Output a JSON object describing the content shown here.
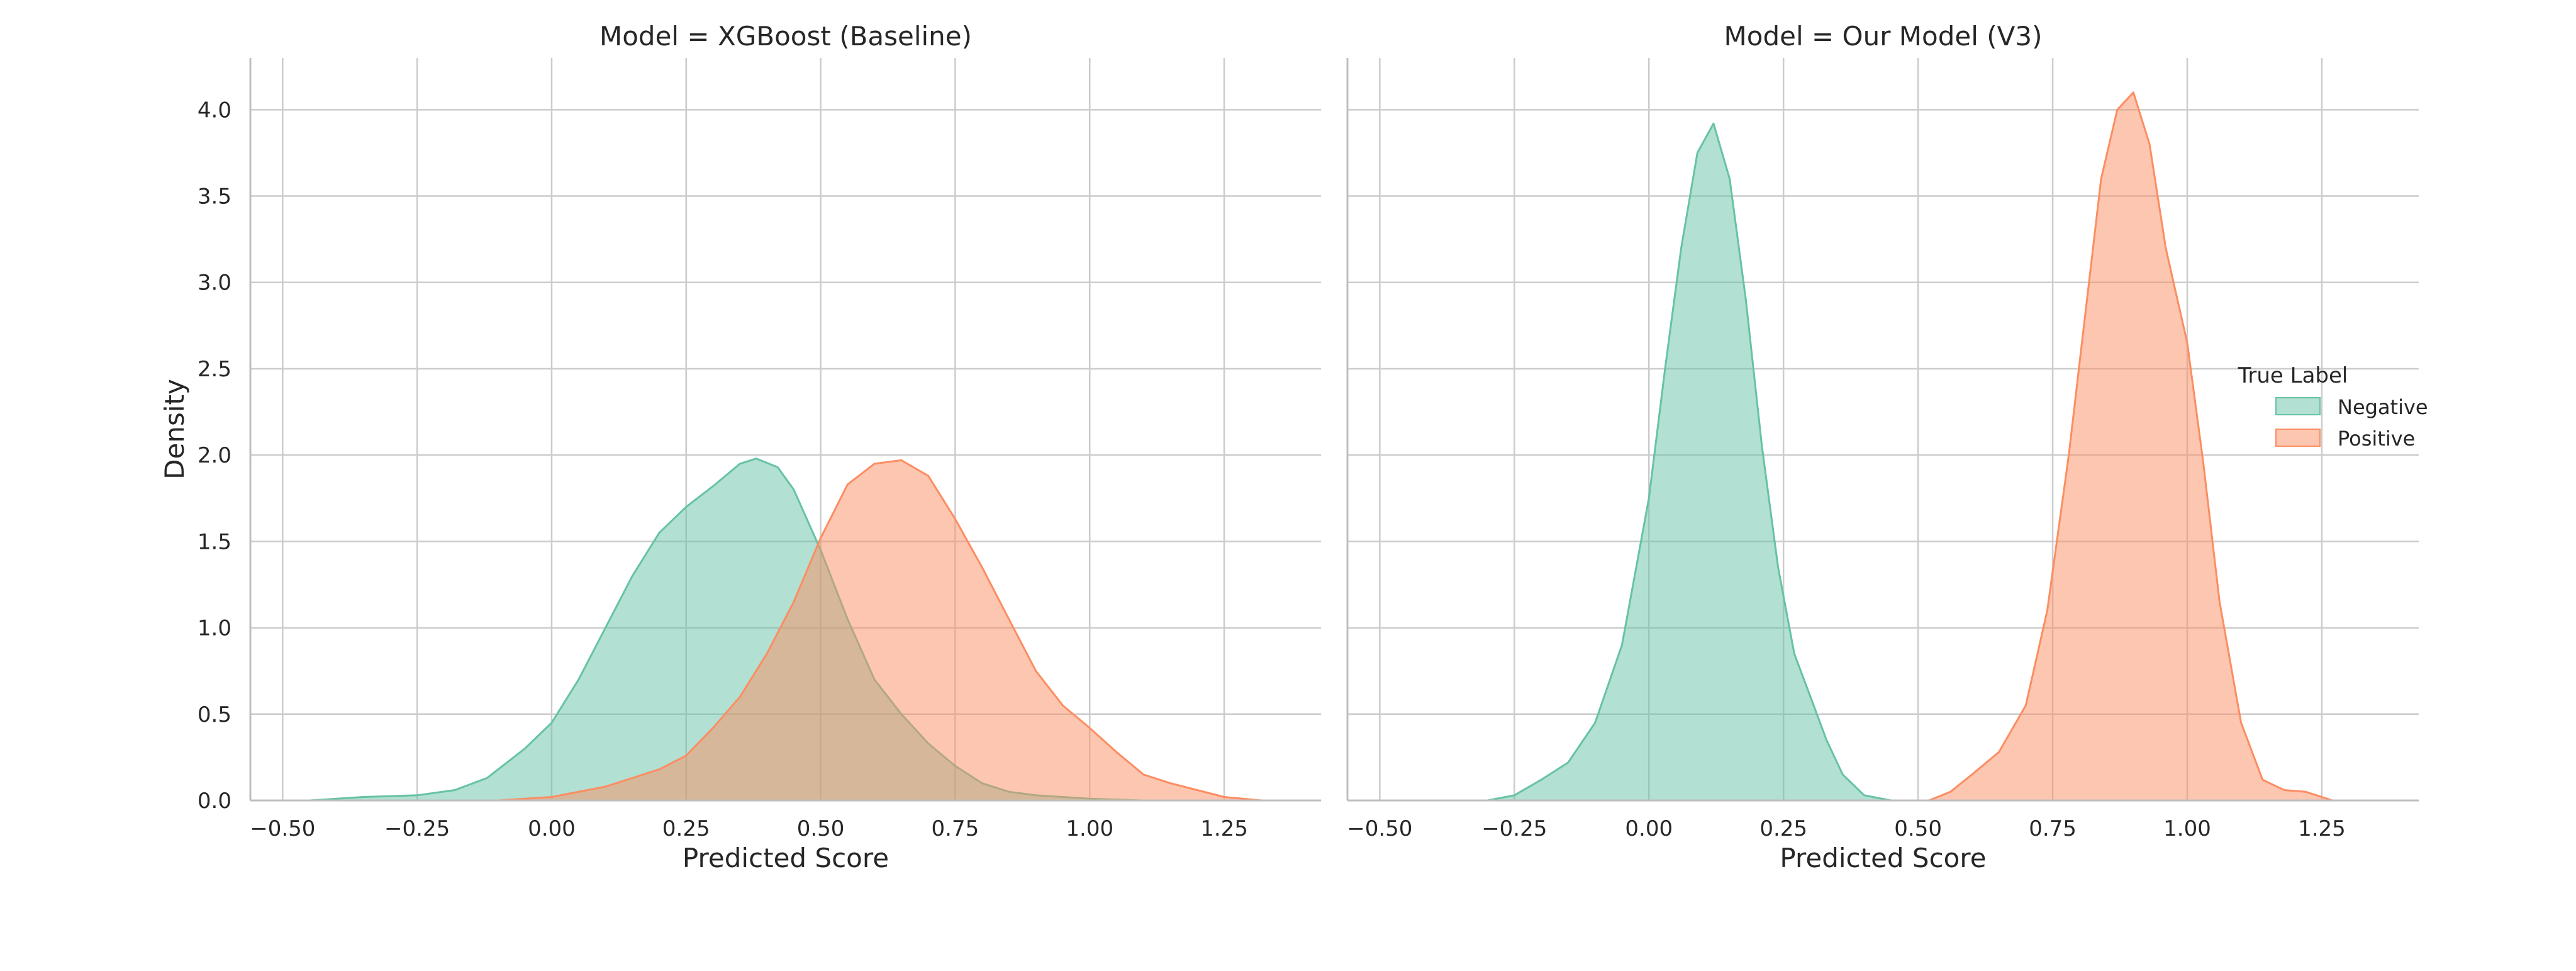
{
  "chart_data": [
    {
      "type": "area",
      "title": "Model = XGBoost (Baseline)",
      "xlabel": "Predicted Score",
      "ylabel": "Density",
      "xlim": [
        -0.56,
        1.43
      ],
      "ylim": [
        0,
        4.3
      ],
      "xticks": [
        "−0.50",
        "−0.25",
        "0.00",
        "0.25",
        "0.50",
        "0.75",
        "1.00",
        "1.25"
      ],
      "yticks": [
        "0.0",
        "0.5",
        "1.0",
        "1.5",
        "2.0",
        "2.5",
        "3.0",
        "3.5",
        "4.0"
      ],
      "grid": true,
      "series": [
        {
          "name": "Negative",
          "x": [
            -0.45,
            -0.35,
            -0.25,
            -0.18,
            -0.12,
            -0.05,
            0.0,
            0.05,
            0.1,
            0.15,
            0.2,
            0.25,
            0.3,
            0.35,
            0.38,
            0.42,
            0.45,
            0.5,
            0.55,
            0.6,
            0.65,
            0.7,
            0.75,
            0.8,
            0.85,
            0.9,
            0.95,
            1.0,
            1.1,
            1.2
          ],
          "y": [
            0.0,
            0.02,
            0.03,
            0.06,
            0.13,
            0.3,
            0.45,
            0.7,
            1.0,
            1.3,
            1.55,
            1.7,
            1.82,
            1.95,
            1.98,
            1.93,
            1.8,
            1.45,
            1.05,
            0.7,
            0.5,
            0.33,
            0.2,
            0.1,
            0.05,
            0.03,
            0.02,
            0.01,
            0.0,
            0.0
          ]
        },
        {
          "name": "Positive",
          "x": [
            -0.1,
            0.0,
            0.1,
            0.2,
            0.25,
            0.3,
            0.35,
            0.4,
            0.45,
            0.5,
            0.55,
            0.6,
            0.65,
            0.7,
            0.75,
            0.8,
            0.85,
            0.9,
            0.95,
            1.0,
            1.05,
            1.1,
            1.15,
            1.2,
            1.25,
            1.32
          ],
          "y": [
            0.0,
            0.02,
            0.08,
            0.18,
            0.26,
            0.42,
            0.6,
            0.85,
            1.15,
            1.52,
            1.83,
            1.95,
            1.97,
            1.88,
            1.63,
            1.35,
            1.05,
            0.75,
            0.55,
            0.42,
            0.28,
            0.15,
            0.1,
            0.06,
            0.02,
            0.0
          ]
        }
      ]
    },
    {
      "type": "area",
      "title": "Model = Our Model (V3)",
      "xlabel": "Predicted Score",
      "ylabel": "",
      "xlim": [
        -0.56,
        1.43
      ],
      "ylim": [
        0,
        4.3
      ],
      "xticks": [
        "−0.50",
        "−0.25",
        "0.00",
        "0.25",
        "0.50",
        "0.75",
        "1.00",
        "1.25"
      ],
      "grid": true,
      "legend": {
        "title": "True Label",
        "position": "center-right",
        "entries": [
          "Negative",
          "Positive"
        ]
      },
      "series": [
        {
          "name": "Negative",
          "x": [
            -0.3,
            -0.25,
            -0.2,
            -0.15,
            -0.1,
            -0.05,
            0.0,
            0.03,
            0.06,
            0.09,
            0.12,
            0.15,
            0.18,
            0.21,
            0.24,
            0.27,
            0.3,
            0.33,
            0.36,
            0.4,
            0.45
          ],
          "y": [
            0.0,
            0.03,
            0.12,
            0.22,
            0.45,
            0.9,
            1.75,
            2.5,
            3.2,
            3.75,
            3.92,
            3.6,
            2.9,
            2.05,
            1.35,
            0.85,
            0.6,
            0.35,
            0.15,
            0.03,
            0.0
          ]
        },
        {
          "name": "Positive",
          "x": [
            0.52,
            0.56,
            0.6,
            0.65,
            0.7,
            0.74,
            0.78,
            0.81,
            0.84,
            0.87,
            0.9,
            0.93,
            0.96,
            1.0,
            1.03,
            1.06,
            1.1,
            1.14,
            1.18,
            1.22,
            1.27
          ],
          "y": [
            0.0,
            0.05,
            0.15,
            0.28,
            0.55,
            1.1,
            2.0,
            2.8,
            3.6,
            4.0,
            4.1,
            3.8,
            3.2,
            2.65,
            1.95,
            1.15,
            0.45,
            0.12,
            0.06,
            0.05,
            0.0
          ]
        }
      ]
    }
  ],
  "colors": {
    "negative_fill": "#66c2a5",
    "positive_fill": "#fc8d62",
    "grid": "#cccccc",
    "axis": "#bfbfbf",
    "text": "#262626"
  }
}
